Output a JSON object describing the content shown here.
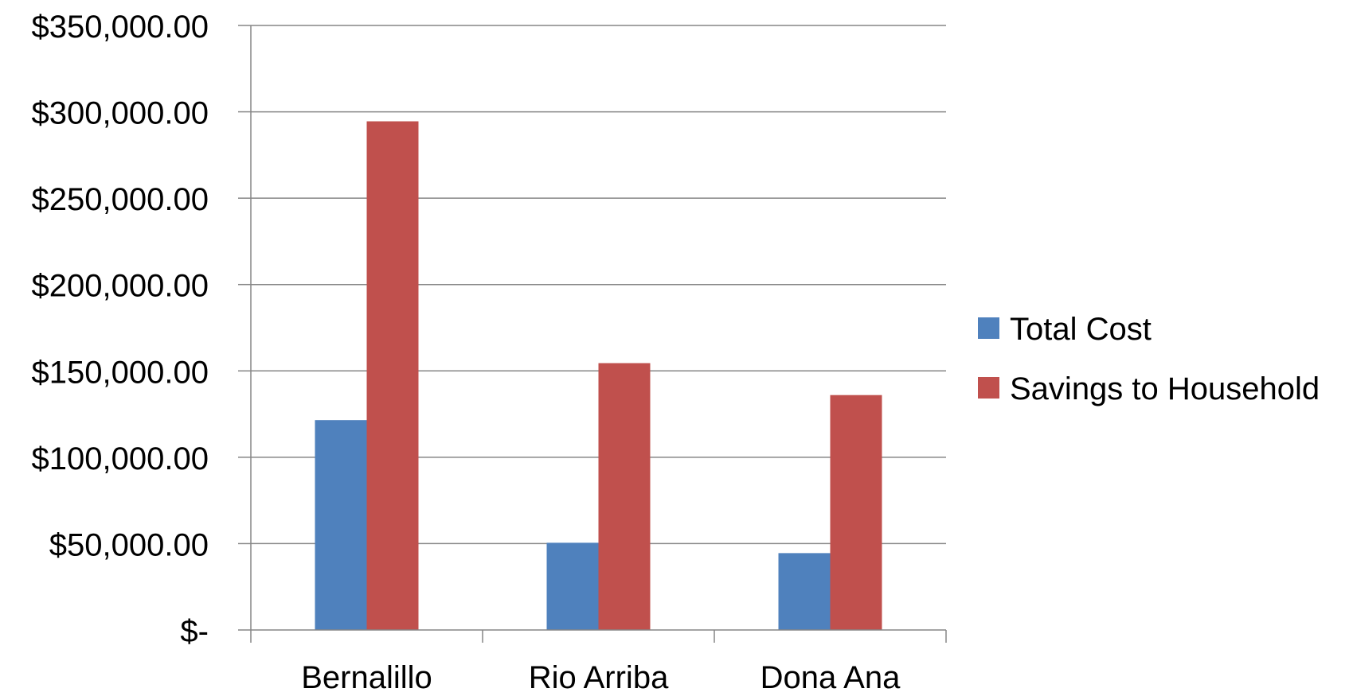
{
  "chart_data": {
    "type": "bar",
    "categories": [
      "Bernalillo",
      "Rio Arriba",
      "Dona Ana"
    ],
    "series": [
      {
        "name": "Total Cost",
        "color": "#4F81BD",
        "values": [
          121500,
          50500,
          44500
        ]
      },
      {
        "name": "Savings to Household",
        "color": "#C0504D",
        "values": [
          294500,
          154500,
          136000
        ]
      }
    ],
    "y_tick_values": [
      0,
      50000,
      100000,
      150000,
      200000,
      250000,
      300000,
      350000
    ],
    "y_tick_labels": [
      "$-",
      "$50,000.00",
      "$100,000.00",
      "$150,000.00",
      "$200,000.00",
      "$250,000.00",
      "$300,000.00",
      "$350,000.00"
    ],
    "ylim": [
      0,
      350000
    ],
    "grid": true,
    "legend_position": "right",
    "axis_color": "#868686",
    "gridline_color": "#868686"
  }
}
